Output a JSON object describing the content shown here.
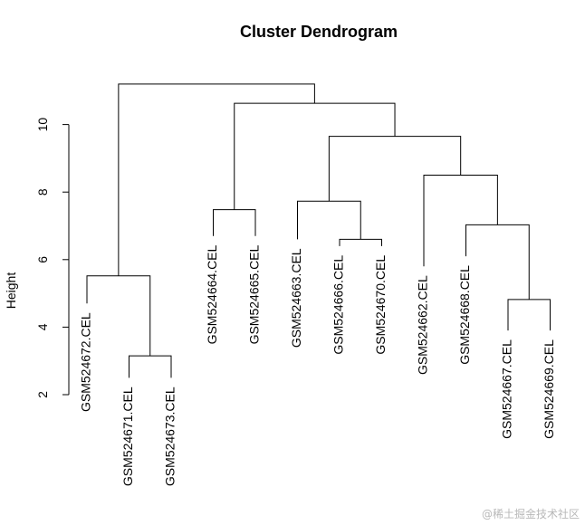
{
  "chart_data": {
    "type": "dendrogram",
    "title": "Cluster Dendrogram",
    "ylabel": "Height",
    "ylim": [
      2,
      11.3
    ],
    "yticks": [
      2,
      4,
      6,
      8,
      10
    ],
    "leaves": [
      "GSM524672.CEL",
      "GSM524671.CEL",
      "GSM524673.CEL",
      "GSM524664.CEL",
      "GSM524665.CEL",
      "GSM524663.CEL",
      "GSM524666.CEL",
      "GSM524670.CEL",
      "GSM524662.CEL",
      "GSM524668.CEL",
      "GSM524667.CEL",
      "GSM524669.CEL"
    ],
    "leaf_tips": [
      4.7,
      2.5,
      2.5,
      6.7,
      6.7,
      6.6,
      6.4,
      6.4,
      5.8,
      6.1,
      3.9,
      3.9
    ],
    "merges": [
      {
        "left": 1,
        "right": 2,
        "height": 3.15
      },
      {
        "left": 0,
        "right": "m0",
        "height": 5.52
      },
      {
        "left": 3,
        "right": 4,
        "height": 7.48
      },
      {
        "left": 6,
        "right": 7,
        "height": 6.6
      },
      {
        "left": 5,
        "right": "m3",
        "height": 7.73
      },
      {
        "left": 10,
        "right": 11,
        "height": 4.82
      },
      {
        "left": 9,
        "right": "m5",
        "height": 7.03
      },
      {
        "left": 8,
        "right": "m6",
        "height": 8.5
      },
      {
        "left": "m4",
        "right": "m7",
        "height": 9.65
      },
      {
        "left": "m2",
        "right": "m8",
        "height": 10.63
      },
      {
        "left": "m1",
        "right": "m9",
        "height": 11.2
      }
    ]
  },
  "watermark": "@稀土掘金技术社区"
}
